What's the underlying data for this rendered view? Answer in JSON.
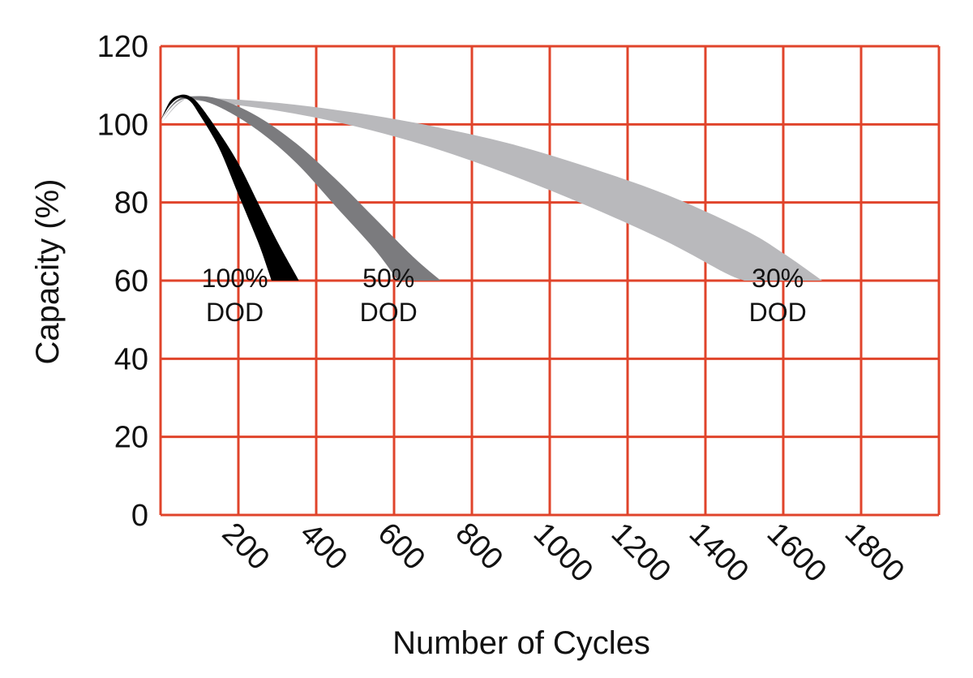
{
  "chart_data": {
    "type": "area",
    "title": "",
    "xlabel": "Number of Cycles",
    "ylabel": "Capacity (%)",
    "xlim": [
      0,
      2000
    ],
    "ylim": [
      0,
      120
    ],
    "grid": true,
    "grid_color": "#e0442b",
    "x_ticks": [
      200,
      400,
      600,
      800,
      1000,
      1200,
      1400,
      1600,
      1800
    ],
    "y_ticks": [
      0,
      20,
      40,
      60,
      80,
      100,
      120
    ],
    "series": [
      {
        "name": "100% DOD",
        "label_lines": [
          "100%",
          "DOD"
        ],
        "label_pos": [
          195,
          50
        ],
        "color": "#000000",
        "upper": [
          [
            0,
            101
          ],
          [
            25,
            106
          ],
          [
            50,
            107.5
          ],
          [
            75,
            107.2
          ],
          [
            100,
            105
          ],
          [
            150,
            98
          ],
          [
            200,
            90
          ],
          [
            250,
            80
          ],
          [
            300,
            70
          ],
          [
            350,
            61
          ],
          [
            355,
            60
          ]
        ],
        "lower": [
          [
            0,
            101
          ],
          [
            25,
            105
          ],
          [
            50,
            106.8
          ],
          [
            75,
            106
          ],
          [
            100,
            102.5
          ],
          [
            150,
            94
          ],
          [
            200,
            82
          ],
          [
            250,
            70
          ],
          [
            275,
            63
          ],
          [
            285,
            60
          ]
        ]
      },
      {
        "name": "50% DOD",
        "label_lines": [
          "50%",
          "DOD"
        ],
        "label_pos": [
          590,
          50
        ],
        "color": "#7b7b7e",
        "upper": [
          [
            0,
            101
          ],
          [
            40,
            106
          ],
          [
            80,
            107.2
          ],
          [
            150,
            106.5
          ],
          [
            250,
            102
          ],
          [
            350,
            95
          ],
          [
            450,
            86
          ],
          [
            550,
            76
          ],
          [
            650,
            66
          ],
          [
            720,
            60
          ]
        ],
        "lower": [
          [
            0,
            101
          ],
          [
            40,
            105.5
          ],
          [
            80,
            106.5
          ],
          [
            150,
            104.5
          ],
          [
            250,
            98.5
          ],
          [
            350,
            90
          ],
          [
            450,
            79
          ],
          [
            550,
            68
          ],
          [
            610,
            60
          ]
        ]
      },
      {
        "name": "30% DOD",
        "label_lines": [
          "30%",
          "DOD"
        ],
        "label_pos": [
          1590,
          50
        ],
        "color": "#b9b9bc",
        "upper": [
          [
            0,
            100
          ],
          [
            50,
            105.5
          ],
          [
            100,
            106.8
          ],
          [
            300,
            105.5
          ],
          [
            500,
            103
          ],
          [
            700,
            99.5
          ],
          [
            900,
            95
          ],
          [
            1100,
            89
          ],
          [
            1300,
            82
          ],
          [
            1500,
            73
          ],
          [
            1600,
            67
          ],
          [
            1700,
            60
          ]
        ],
        "lower": [
          [
            0,
            100
          ],
          [
            50,
            105.8
          ],
          [
            100,
            106
          ],
          [
            300,
            103.5
          ],
          [
            500,
            99.5
          ],
          [
            700,
            94
          ],
          [
            900,
            87
          ],
          [
            1100,
            79
          ],
          [
            1300,
            70
          ],
          [
            1450,
            62
          ],
          [
            1500,
            60
          ]
        ]
      }
    ]
  }
}
